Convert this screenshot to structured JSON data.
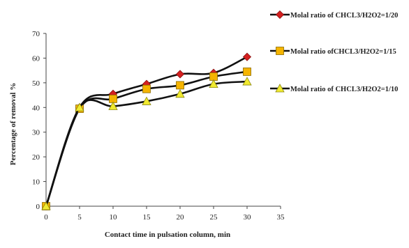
{
  "chart_data": {
    "type": "line",
    "title": "",
    "xlabel": "Contact time in pulsation column, min",
    "ylabel": "Percentage of removal %",
    "xlim": [
      0,
      35
    ],
    "ylim": [
      0,
      70
    ],
    "xticks": [
      0,
      5,
      10,
      15,
      20,
      25,
      30,
      35
    ],
    "yticks": [
      0,
      10,
      20,
      30,
      40,
      50,
      60,
      70
    ],
    "grid": false,
    "legend_position": "right",
    "series": [
      {
        "name": "Molal ratio of CHCL3/H2O2=1/20",
        "marker": "diamond",
        "marker_color": "#d42020",
        "x": [
          0,
          5,
          10,
          15,
          20,
          25,
          30
        ],
        "y": [
          0,
          40,
          45.5,
          49.5,
          53.5,
          54,
          60.5
        ]
      },
      {
        "name": "Molal ratio ofCHCL3/H2O2=1/15",
        "marker": "square",
        "marker_color": "#f5b400",
        "x": [
          0,
          5,
          10,
          15,
          20,
          25,
          30
        ],
        "y": [
          0,
          39.5,
          43.5,
          47.5,
          49,
          52.5,
          54.5
        ]
      },
      {
        "name": "Molal ratio of CHCL3/H2O2=1/10",
        "marker": "triangle",
        "marker_color": "#f0ea30",
        "x": [
          0,
          5,
          10,
          15,
          20,
          25,
          30
        ],
        "y": [
          0,
          40,
          40.5,
          42.5,
          45.5,
          49.5,
          50.5
        ]
      }
    ]
  }
}
